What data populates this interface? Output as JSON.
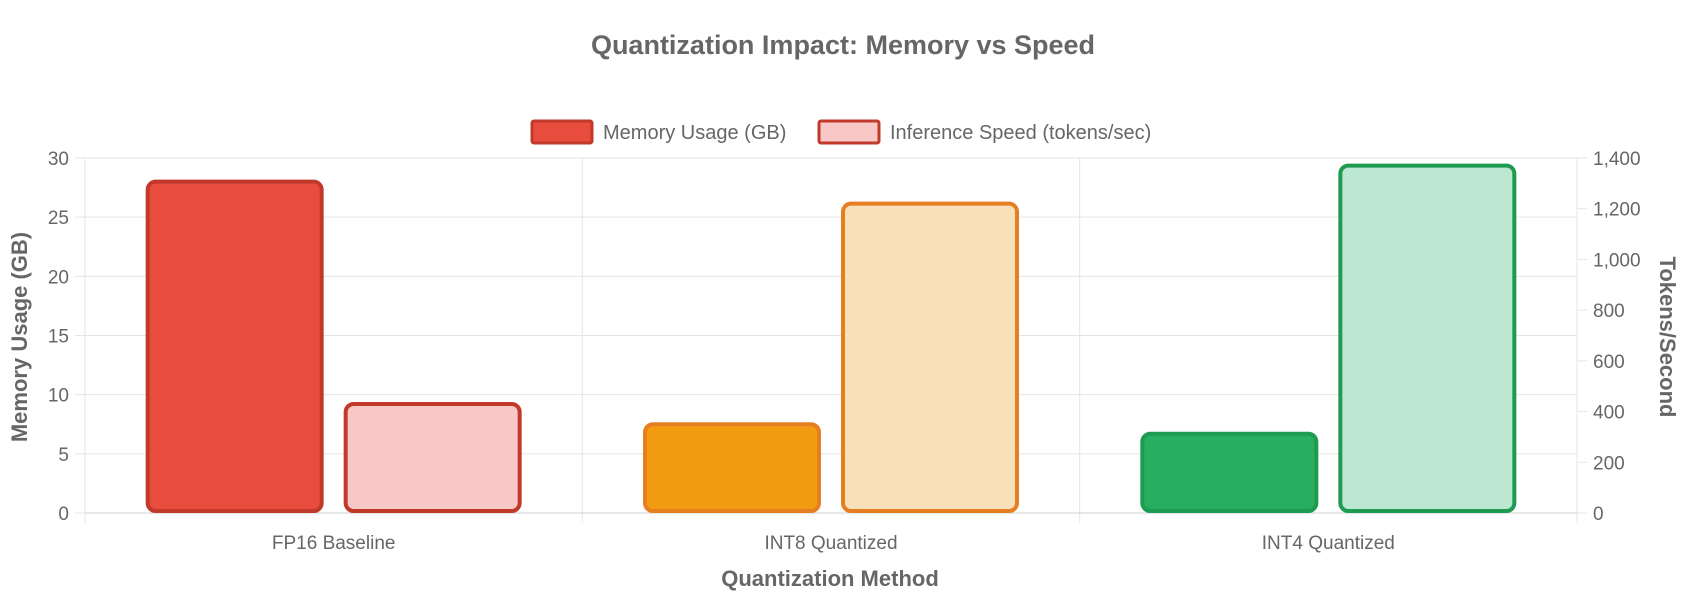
{
  "chart_data": {
    "type": "bar",
    "title": "Quantization Impact: Memory vs Speed",
    "categories": [
      "FP16 Baseline",
      "INT8 Quantized",
      "INT4 Quantized"
    ],
    "xlabel": "Quantization Method",
    "y_left": {
      "label": "Memory Usage (GB)",
      "ylim": [
        0,
        30
      ],
      "ticks": [
        "0",
        "5",
        "10",
        "15",
        "20",
        "25",
        "30"
      ]
    },
    "y_right": {
      "label": "Tokens/Second",
      "ylim": [
        0,
        1400
      ],
      "ticks": [
        "0",
        "200",
        "400",
        "600",
        "800",
        "1,000",
        "1,200",
        "1,400"
      ]
    },
    "series": [
      {
        "name": "Memory Usage (GB)",
        "axis": "left",
        "values": [
          28,
          7.5,
          6.7
        ],
        "fill_colors": [
          "#e74c3c",
          "#f39c12",
          "#27ae60"
        ],
        "border_colors": [
          "#c0392b",
          "#e67e22",
          "#1e9b50"
        ]
      },
      {
        "name": "Inference Speed (tokens/sec)",
        "axis": "right",
        "values": [
          430,
          1220,
          1370
        ],
        "fill_colors": [
          "#f7c8c5",
          "#f8e0b8",
          "#bce8d1"
        ],
        "border_colors": [
          "#c0392b",
          "#e67e22",
          "#1e9b50"
        ]
      }
    ],
    "legend": {
      "position": "top-center",
      "swatches": [
        {
          "fill": "#e74c3c",
          "border": "#c0392b"
        },
        {
          "fill": "#f7c8c5",
          "border": "#c0392b"
        }
      ]
    },
    "grid": true
  }
}
